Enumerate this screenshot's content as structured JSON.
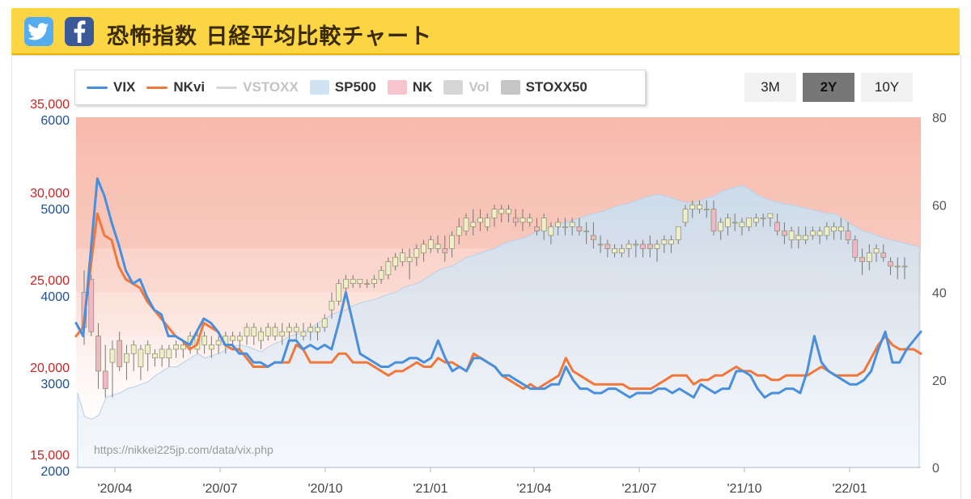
{
  "header": {
    "title": "恐怖指数 日経平均比較チャート"
  },
  "share": {
    "twitter_icon": "twitter-icon",
    "facebook_icon": "facebook-icon"
  },
  "range_buttons": [
    {
      "label": "3M",
      "active": false
    },
    {
      "label": "2Y",
      "active": true
    },
    {
      "label": "10Y",
      "active": false
    }
  ],
  "watermark": "https://nikkei225jp.com/data/vix.php",
  "colors": {
    "vix": "#4a8fdc",
    "nkvi": "#f0783c",
    "vstoxx": "#c8cdd6",
    "sp500": "#cfe3f2",
    "nk_up": "#eeeec8",
    "nk_down": "#f0b8c4",
    "vol": "#c6c6c6",
    "stoxx50": "#c8c8c8",
    "header_bg": "#fcd545",
    "left_axis_nk": "#cc2222",
    "left_axis_sp": "#1f4f8f"
  },
  "chart_data": {
    "type": "line",
    "legend": [
      {
        "name": "VIX",
        "style": "line",
        "color": "#4a8fdc",
        "on": true
      },
      {
        "name": "NKvi",
        "style": "line",
        "color": "#f0783c",
        "on": true
      },
      {
        "name": "VSTOXX",
        "style": "line",
        "color": "#c8cdd6",
        "on": false
      },
      {
        "name": "SP500",
        "style": "box",
        "color": "#cfe3f2",
        "on": true
      },
      {
        "name": "NK",
        "style": "box",
        "color": "#f5c4cc",
        "on": true
      },
      {
        "name": "Vol",
        "style": "box",
        "color": "#cfcfcf",
        "on": false
      },
      {
        "name": "STOXX50",
        "style": "box",
        "color": "#c6c6c6",
        "on": true
      }
    ],
    "x_ticks": [
      "'20/04",
      "'20/07",
      "'20/10",
      "'21/01",
      "'21/04",
      "'21/07",
      "'21/10",
      "'22/01"
    ],
    "left_axis_nk": {
      "ticks": [
        "35,000",
        "30,000",
        "25,000",
        "20,000",
        "15,000"
      ],
      "range": [
        15000,
        35000
      ]
    },
    "left_axis_sp": {
      "ticks": [
        "6000",
        "5000",
        "4000",
        "3000",
        "2000"
      ],
      "range": [
        2000,
        6000
      ]
    },
    "right_axis": {
      "ticks": [
        "80",
        "60",
        "40",
        "20",
        "0"
      ],
      "range": [
        0,
        80
      ]
    },
    "vix": [
      33,
      30,
      48,
      66,
      62,
      56,
      51,
      45,
      42,
      43,
      39,
      36,
      35,
      30,
      30,
      29,
      28,
      31,
      34,
      33,
      31,
      28,
      28,
      26,
      26,
      24,
      24,
      23,
      24,
      24,
      29,
      29,
      27,
      28,
      27,
      28,
      27,
      33,
      40,
      33,
      26,
      25,
      24,
      23,
      23,
      24,
      24,
      25,
      25,
      24,
      25,
      29,
      25,
      22,
      23,
      22,
      25,
      25,
      24,
      23,
      21,
      21,
      20,
      19,
      18,
      18,
      18,
      19,
      19,
      23,
      20,
      18,
      18,
      17,
      17,
      18,
      18,
      17,
      16,
      17,
      17,
      17,
      18,
      18,
      17,
      18,
      17,
      16,
      19,
      18,
      17,
      18,
      18,
      22,
      22,
      21,
      18,
      16,
      17,
      17,
      18,
      18,
      17,
      22,
      30,
      24,
      22,
      21,
      20,
      19,
      19,
      20,
      22,
      27,
      31,
      24,
      24,
      27,
      29,
      31
    ],
    "nkvi": [
      30,
      32,
      45,
      58,
      53,
      52,
      46,
      43,
      42,
      41,
      38,
      36,
      34,
      32,
      30,
      29,
      27,
      28,
      33,
      32,
      31,
      28,
      27,
      27,
      25,
      23,
      23,
      23,
      24,
      24,
      24,
      28,
      27,
      24,
      24,
      24,
      24,
      26,
      26,
      24,
      24,
      24,
      23,
      22,
      21,
      22,
      22,
      23,
      24,
      23,
      23,
      25,
      24,
      24,
      23,
      22,
      26,
      25,
      24,
      23,
      21,
      20,
      19,
      18,
      19,
      18,
      19,
      20,
      21,
      25,
      22,
      21,
      20,
      19,
      19,
      19,
      19,
      19,
      18,
      18,
      18,
      18,
      19,
      20,
      21,
      21,
      21,
      19,
      20,
      20,
      21,
      21,
      22,
      23,
      22,
      22,
      21,
      21,
      20,
      20,
      21,
      21,
      21,
      21,
      22,
      23,
      22,
      21,
      21,
      21,
      21,
      22,
      25,
      28,
      30,
      28,
      27,
      27,
      27,
      26
    ],
    "sp500": [
      2850,
      2580,
      2550,
      2600,
      2800,
      2830,
      2850,
      2900,
      2920,
      2950,
      2980,
      3050,
      3100,
      3150,
      3150,
      3200,
      3250,
      3300,
      3250,
      3280,
      3300,
      3350,
      3380,
      3400,
      3380,
      3350,
      3320,
      3380,
      3420,
      3450,
      3500,
      3520,
      3550,
      3600,
      3650,
      3700,
      3750,
      3780,
      3800,
      3850,
      3880,
      3900,
      3920,
      3950,
      3980,
      4000,
      4050,
      4080,
      4100,
      4150,
      4200,
      4250,
      4280,
      4300,
      4350,
      4400,
      4420,
      4450,
      4480,
      4500,
      4550,
      4580,
      4600,
      4620,
      4650,
      4700,
      4720,
      4750,
      4780,
      4800,
      4820,
      4850,
      4880,
      4900,
      4920,
      4950,
      4980,
      5000,
      5020,
      5050,
      5080,
      5100,
      5120,
      5100,
      5080,
      5050,
      5030,
      5020,
      5050,
      5080,
      5100,
      5150,
      5180,
      5200,
      5220,
      5180,
      5120,
      5080,
      5050,
      5030,
      5010,
      5000,
      4980,
      4960,
      4940,
      4920,
      4900,
      4900,
      4850,
      4800,
      4750,
      4700,
      4680,
      4650,
      4620,
      4600,
      4580,
      4560,
      4540,
      4520
    ],
    "stoxx50": [
      [
        40,
        45,
        28,
        32
      ],
      [
        43,
        44,
        30,
        31
      ],
      [
        30,
        33,
        18,
        22
      ],
      [
        22,
        28,
        16,
        18
      ],
      [
        24,
        29,
        16,
        27
      ],
      [
        29,
        31,
        22,
        23
      ],
      [
        24,
        28,
        20,
        26
      ],
      [
        26,
        29,
        22,
        28
      ],
      [
        23,
        28,
        20,
        27
      ],
      [
        26,
        29,
        22,
        28
      ],
      [
        25,
        27,
        23,
        26
      ],
      [
        25,
        28,
        23,
        27
      ],
      [
        25,
        28,
        23,
        27
      ],
      [
        27,
        29,
        25,
        28
      ],
      [
        27,
        29,
        25,
        28
      ],
      [
        28,
        31,
        26,
        30
      ],
      [
        27,
        31,
        26,
        30
      ],
      [
        28,
        31,
        26,
        30
      ],
      [
        27,
        30,
        25,
        28
      ],
      [
        28,
        30,
        26,
        29
      ],
      [
        28,
        31,
        26,
        30
      ],
      [
        29,
        31,
        28,
        30
      ],
      [
        29,
        31,
        27,
        30
      ],
      [
        30,
        33,
        28,
        32
      ],
      [
        30,
        33,
        28,
        32
      ],
      [
        29,
        32,
        27,
        31
      ],
      [
        30,
        33,
        29,
        32
      ],
      [
        30,
        33,
        29,
        32
      ],
      [
        30,
        33,
        28,
        31
      ],
      [
        31,
        33,
        29,
        32
      ],
      [
        31,
        33,
        29,
        32
      ],
      [
        30,
        33,
        29,
        31
      ],
      [
        31,
        33,
        29,
        32
      ],
      [
        31,
        33,
        29,
        32
      ],
      [
        32,
        35,
        31,
        34
      ],
      [
        36,
        40,
        34,
        38
      ],
      [
        38,
        43,
        37,
        42
      ],
      [
        41,
        44,
        40,
        43
      ],
      [
        42,
        44,
        41,
        43
      ],
      [
        42,
        43,
        41,
        43
      ],
      [
        42,
        43,
        41,
        42
      ],
      [
        42,
        44,
        41,
        43
      ],
      [
        43,
        46,
        42,
        45
      ],
      [
        44,
        48,
        43,
        47
      ],
      [
        46,
        49,
        45,
        48
      ],
      [
        47,
        50,
        46,
        49
      ],
      [
        47,
        50,
        43,
        48
      ],
      [
        48,
        51,
        46,
        50
      ],
      [
        49,
        52,
        47,
        51
      ],
      [
        50,
        53,
        49,
        52
      ],
      [
        50,
        53,
        49,
        51
      ],
      [
        50,
        53,
        47,
        49
      ],
      [
        50,
        54,
        48,
        53
      ],
      [
        53,
        57,
        51,
        55
      ],
      [
        54,
        58,
        53,
        57
      ],
      [
        55,
        59,
        53,
        56
      ],
      [
        56,
        59,
        54,
        57
      ],
      [
        55,
        58,
        54,
        57
      ],
      [
        57,
        60,
        55,
        59
      ],
      [
        58,
        60,
        56,
        59
      ],
      [
        58,
        60,
        56,
        59
      ],
      [
        57,
        59,
        55,
        56
      ],
      [
        56,
        59,
        54,
        57
      ],
      [
        56,
        58,
        55,
        57
      ],
      [
        55,
        57,
        53,
        54
      ],
      [
        54,
        58,
        52,
        57
      ],
      [
        53,
        56,
        51,
        55
      ],
      [
        55,
        57,
        53,
        56
      ],
      [
        55,
        57,
        53,
        55
      ],
      [
        55,
        57,
        53,
        56
      ],
      [
        55,
        57,
        53,
        54
      ],
      [
        54,
        56,
        51,
        54
      ],
      [
        53,
        56,
        50,
        52
      ],
      [
        51,
        53,
        49,
        51
      ],
      [
        51,
        52,
        48,
        50
      ],
      [
        49,
        51,
        48,
        50
      ],
      [
        49,
        51,
        48,
        50
      ],
      [
        50,
        52,
        48,
        51
      ],
      [
        51,
        52,
        48,
        51
      ],
      [
        51,
        52,
        48,
        50
      ],
      [
        51,
        53,
        48,
        50
      ],
      [
        50,
        52,
        47,
        51
      ],
      [
        51,
        53,
        49,
        52
      ],
      [
        51,
        53,
        49,
        52
      ],
      [
        52,
        55,
        51,
        55
      ],
      [
        56,
        60,
        55,
        59
      ],
      [
        59,
        61,
        57,
        60
      ],
      [
        59,
        61,
        58,
        60
      ],
      [
        59,
        61,
        57,
        59
      ],
      [
        59,
        61,
        53,
        54
      ],
      [
        54,
        57,
        52,
        56
      ],
      [
        55,
        58,
        53,
        57
      ],
      [
        56,
        58,
        54,
        56
      ],
      [
        55,
        57,
        53,
        56
      ],
      [
        55,
        57,
        54,
        57
      ],
      [
        56,
        58,
        55,
        57
      ],
      [
        57,
        58,
        55,
        57
      ],
      [
        57,
        58,
        55,
        58
      ],
      [
        56,
        58,
        53,
        54
      ],
      [
        54,
        56,
        51,
        53
      ],
      [
        52,
        55,
        50,
        54
      ],
      [
        52,
        55,
        50,
        53
      ],
      [
        52,
        55,
        51,
        53
      ],
      [
        53,
        55,
        52,
        54
      ],
      [
        53,
        55,
        51,
        54
      ],
      [
        53,
        56,
        52,
        55
      ],
      [
        54,
        56,
        52,
        55
      ],
      [
        54,
        57,
        52,
        55
      ],
      [
        54,
        56,
        51,
        52
      ],
      [
        52,
        53,
        47,
        48
      ],
      [
        48,
        50,
        44,
        47
      ],
      [
        47,
        51,
        45,
        49
      ],
      [
        49,
        51,
        47,
        50
      ],
      [
        49,
        51,
        47,
        48
      ],
      [
        47,
        48,
        44,
        46
      ],
      [
        46,
        48,
        43,
        46
      ],
      [
        46,
        48,
        43,
        46
      ]
    ],
    "source_note": "https://nikkei225jp.com/data/vix.php"
  }
}
